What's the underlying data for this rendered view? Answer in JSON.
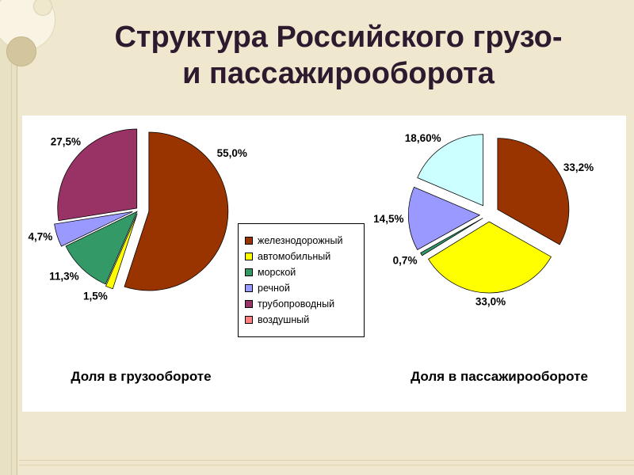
{
  "slide": {
    "title_line1": "Структура Российского грузо-",
    "title_line2": "и пассажирооборота",
    "background_color": "#EFE8CF",
    "title_color": "#2E1A2E"
  },
  "legend": {
    "items": [
      {
        "key": "railway",
        "label": "железнодорожный",
        "color": "#993300"
      },
      {
        "key": "automobile",
        "label": "автомобильный",
        "color": "#FFFF00"
      },
      {
        "key": "sea",
        "label": "морской",
        "color": "#339966"
      },
      {
        "key": "river",
        "label": "речной",
        "color": "#9999FF"
      },
      {
        "key": "pipeline",
        "label": "трубопроводный",
        "color": "#993366"
      },
      {
        "key": "air",
        "label": "воздушный",
        "color": "#FF8080"
      }
    ]
  },
  "chart_data": [
    {
      "type": "pie",
      "title": "Доля в грузообороте",
      "categories": [
        "железнодорожный",
        "автомобильный",
        "морской",
        "речной",
        "трубопроводный"
      ],
      "category_keys": [
        "railway",
        "automobile",
        "sea",
        "river",
        "pipeline"
      ],
      "values": [
        55.0,
        1.5,
        11.3,
        4.7,
        27.5
      ],
      "display_labels": [
        "55,0%",
        "1,5%",
        "11,3%",
        "4,7%",
        "27,5%"
      ],
      "colors": [
        "#993300",
        "#FFFF00",
        "#339966",
        "#9999FF",
        "#993366"
      ],
      "start_angle_deg": 0,
      "direction": "clockwise",
      "explode": [
        0.13,
        0.05,
        0.03,
        0.08,
        0.03
      ],
      "label_angles": [
        56,
        null,
        null,
        null,
        318
      ],
      "legend_position": "right-of-chart"
    },
    {
      "type": "pie",
      "title": "Доля в пассажирообороте",
      "categories": [
        "железнодорожный",
        "автомобильный",
        "морской",
        "речной",
        "воздушный"
      ],
      "category_keys": [
        "railway",
        "automobile",
        "sea",
        "river",
        "air"
      ],
      "values": [
        33.2,
        33.0,
        0.7,
        14.5,
        18.6
      ],
      "display_labels": [
        "33,2%",
        "33,0%",
        "0,7%",
        "14,5%",
        "18,60%"
      ],
      "colors": [
        "#993300",
        "#FFFF00",
        "#339966",
        "#9999FF",
        "#CCFFFF"
      ],
      "start_angle_deg": 0,
      "direction": "clockwise",
      "explode": [
        0.14,
        0.1,
        0.1,
        0.13,
        0.15
      ],
      "label_angles": null,
      "legend_position": "none"
    }
  ]
}
